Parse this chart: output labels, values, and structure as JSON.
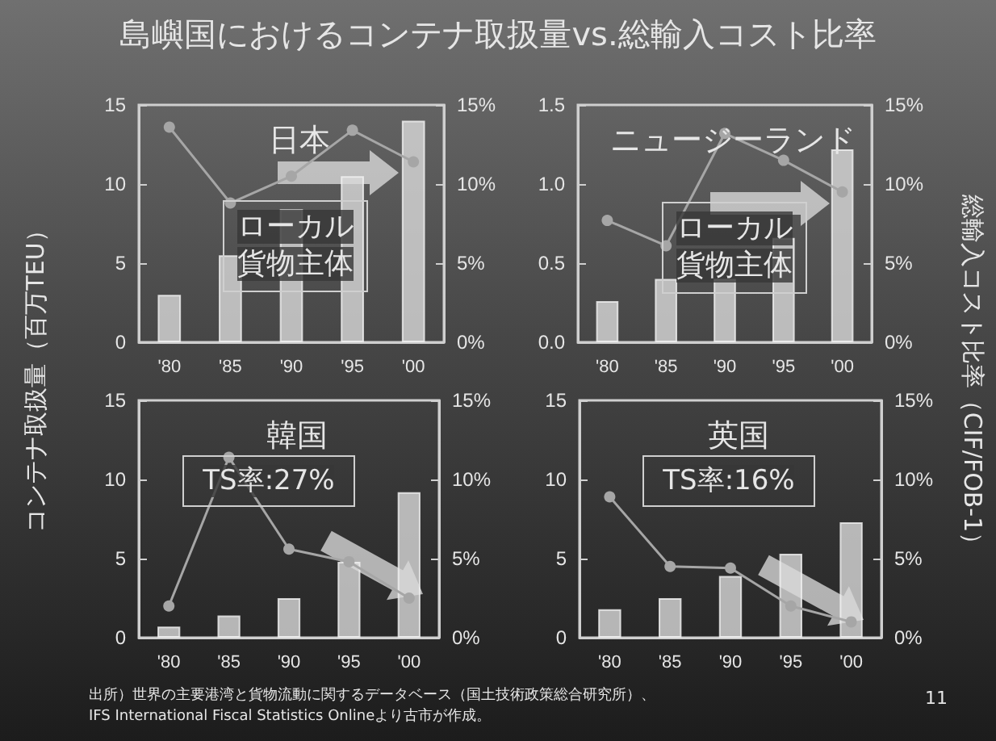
{
  "chart_data": [
    {
      "type": "bar",
      "title": "日本",
      "ylabel": "コンテナ取扱量（百万TEU）",
      "categories": [
        "'80",
        "'85",
        "'90",
        "'95",
        "'00"
      ],
      "series": [
        {
          "color": "#d9d9d9",
          "values": [
            3.0,
            5.5,
            8.4,
            10.5,
            14.0
          ]
        },
        {
          "type": "line",
          "axis": "y2",
          "color": "#a6a6a6",
          "values": [
            13.6,
            8.8,
            10.5,
            13.4,
            11.4
          ]
        }
      ],
      "ylim": [
        0,
        15
      ],
      "yticks": [
        0,
        5,
        10,
        15
      ],
      "y2lim": [
        0,
        15
      ],
      "y2ticks": [
        {
          "value": 0,
          "label": "0%"
        },
        {
          "value": 5,
          "label": "5%"
        },
        {
          "value": 10,
          "label": "10%"
        },
        {
          "value": 15,
          "label": "15%"
        }
      ],
      "marker": "circle",
      "annotations": [
        "島嶼国におけるコンテナ取扱量vs.総輸入コスト比率",
        "ローカル貨物主体"
      ]
    },
    {
      "type": "bar",
      "title": "ニュージーランド",
      "y2label": "総輸入コスト比率（CIF/FOB-1）",
      "categories": [
        "'80",
        "'85",
        "'90",
        "'95",
        "'00"
      ],
      "series": [
        {
          "color": "#d9d9d9",
          "values": [
            0.26,
            0.4,
            0.4,
            0.66,
            1.22
          ]
        },
        {
          "type": "line",
          "axis": "y2",
          "color": "#a6a6a6",
          "values": [
            7.7,
            6.1,
            13.2,
            11.5,
            9.5
          ]
        }
      ],
      "ylim": [
        0,
        1.5
      ],
      "yticks": [
        {
          "value": 0,
          "label": "0.0"
        },
        {
          "value": 0.5,
          "label": "0.5"
        },
        {
          "value": 1,
          "label": "1.0"
        },
        {
          "value": 1.5,
          "label": "1.5"
        }
      ],
      "y2lim": [
        0,
        15
      ],
      "y2ticks": [
        {
          "value": 0,
          "label": "0%"
        },
        {
          "value": 5,
          "label": "5%"
        },
        {
          "value": 10,
          "label": "10%"
        },
        {
          "value": 15,
          "label": "15%"
        }
      ],
      "marker": "circle",
      "annotations": [
        "ローカル貨物主体"
      ]
    },
    {
      "type": "bar",
      "title": "韓国",
      "categories": [
        "'80",
        "'85",
        "'90",
        "'95",
        "'00"
      ],
      "series": [
        {
          "color": "#d9d9d9",
          "values": [
            0.7,
            1.4,
            2.5,
            4.8,
            9.2
          ]
        },
        {
          "type": "line",
          "axis": "y2",
          "color": "#a6a6a6",
          "values": [
            2.0,
            11.4,
            5.6,
            4.8,
            2.5
          ]
        }
      ],
      "ylim": [
        0,
        15
      ],
      "yticks": [
        0,
        5,
        10,
        15
      ],
      "y2lim": [
        0,
        15
      ],
      "y2ticks": [
        {
          "value": 0,
          "label": "0%"
        },
        {
          "value": 5,
          "label": "5%"
        },
        {
          "value": 10,
          "label": "10%"
        },
        {
          "value": 15,
          "label": "15%"
        }
      ],
      "marker": "circle",
      "annotations": [
        "TS率:27%",
        "出所）世界の主要港湾と貨物流動に関するデータベース（国土技術政策総合研究所）、",
        "IFS International Fiscal Statistics Onlineより古市が作成。"
      ]
    },
    {
      "type": "bar",
      "title": "英国",
      "categories": [
        "'80",
        "'85",
        "'90",
        "'95",
        "'00"
      ],
      "series": [
        {
          "color": "#d9d9d9",
          "values": [
            1.8,
            2.5,
            3.9,
            5.3,
            7.3
          ]
        },
        {
          "type": "line",
          "axis": "y2",
          "color": "#a6a6a6",
          "values": [
            8.9,
            4.5,
            4.4,
            2.0,
            1.0
          ]
        }
      ],
      "ylim": [
        0,
        15
      ],
      "yticks": [
        0,
        5,
        10,
        15
      ],
      "y2lim": [
        0,
        15
      ],
      "y2ticks": [
        {
          "value": 0,
          "label": "0%"
        },
        {
          "value": 5,
          "label": "5%"
        },
        {
          "value": 10,
          "label": "10%"
        },
        {
          "value": 15,
          "label": "15%"
        }
      ],
      "marker": "circle",
      "annotations": [
        "TS率:16%",
        "11"
      ]
    }
  ]
}
